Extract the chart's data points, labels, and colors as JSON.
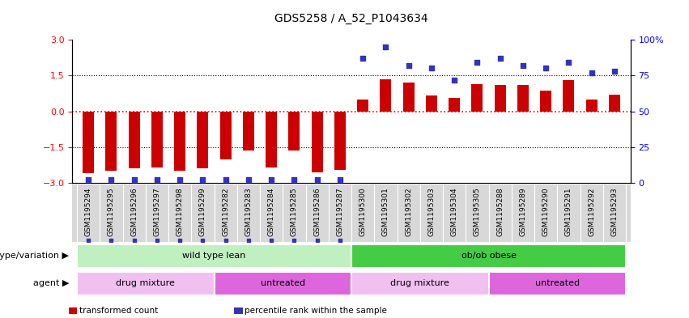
{
  "title": "GDS5258 / A_52_P1043634",
  "samples": [
    "GSM1195294",
    "GSM1195295",
    "GSM1195296",
    "GSM1195297",
    "GSM1195298",
    "GSM1195299",
    "GSM1195282",
    "GSM1195283",
    "GSM1195284",
    "GSM1195285",
    "GSM1195286",
    "GSM1195287",
    "GSM1195300",
    "GSM1195301",
    "GSM1195302",
    "GSM1195303",
    "GSM1195304",
    "GSM1195305",
    "GSM1195288",
    "GSM1195289",
    "GSM1195290",
    "GSM1195291",
    "GSM1195292",
    "GSM1195293"
  ],
  "transformed_count": [
    -2.6,
    -2.5,
    -2.4,
    -2.35,
    -2.5,
    -2.4,
    -2.0,
    -1.65,
    -2.35,
    -1.65,
    -2.55,
    -2.45,
    0.5,
    1.35,
    1.2,
    0.65,
    0.55,
    1.15,
    1.1,
    1.1,
    0.85,
    1.3,
    0.5,
    0.7
  ],
  "percentile_rank": [
    2,
    2,
    2,
    2,
    2,
    2,
    2,
    2,
    2,
    2,
    2,
    2,
    87,
    95,
    82,
    80,
    72,
    84,
    87,
    82,
    80,
    84,
    77,
    78
  ],
  "bar_color": "#cc0000",
  "dot_color": "#3333bb",
  "ylim_left": [
    -3,
    3
  ],
  "ylim_right": [
    0,
    100
  ],
  "yticks_left": [
    -3,
    -1.5,
    0,
    1.5,
    3
  ],
  "yticks_right": [
    0,
    25,
    50,
    75,
    100
  ],
  "hlines_black": [
    1.5,
    -1.5
  ],
  "hline_red": 0,
  "genotype_groups": [
    {
      "label": "wild type lean",
      "start": 0,
      "end": 11,
      "color": "#c0efc0"
    },
    {
      "label": "ob/ob obese",
      "start": 12,
      "end": 23,
      "color": "#44cc44"
    }
  ],
  "agent_groups": [
    {
      "label": "drug mixture",
      "start": 0,
      "end": 5,
      "color": "#f0c0f0"
    },
    {
      "label": "untreated",
      "start": 6,
      "end": 11,
      "color": "#dd66dd"
    },
    {
      "label": "drug mixture",
      "start": 12,
      "end": 17,
      "color": "#f0c0f0"
    },
    {
      "label": "untreated",
      "start": 18,
      "end": 23,
      "color": "#dd66dd"
    }
  ],
  "legend_items": [
    {
      "color": "#cc0000",
      "label": "transformed count"
    },
    {
      "color": "#3333bb",
      "label": "percentile rank within the sample"
    }
  ],
  "bar_width": 0.5,
  "dot_size": 18,
  "title_fontsize": 10,
  "ytick_fontsize": 8,
  "tick_label_fontsize": 6.5,
  "group_label_fontsize": 8,
  "row_label_fontsize": 8,
  "legend_fontsize": 7.5,
  "xtick_bg_color": "#d8d8d8",
  "xtick_separator_color": "#ffffff"
}
